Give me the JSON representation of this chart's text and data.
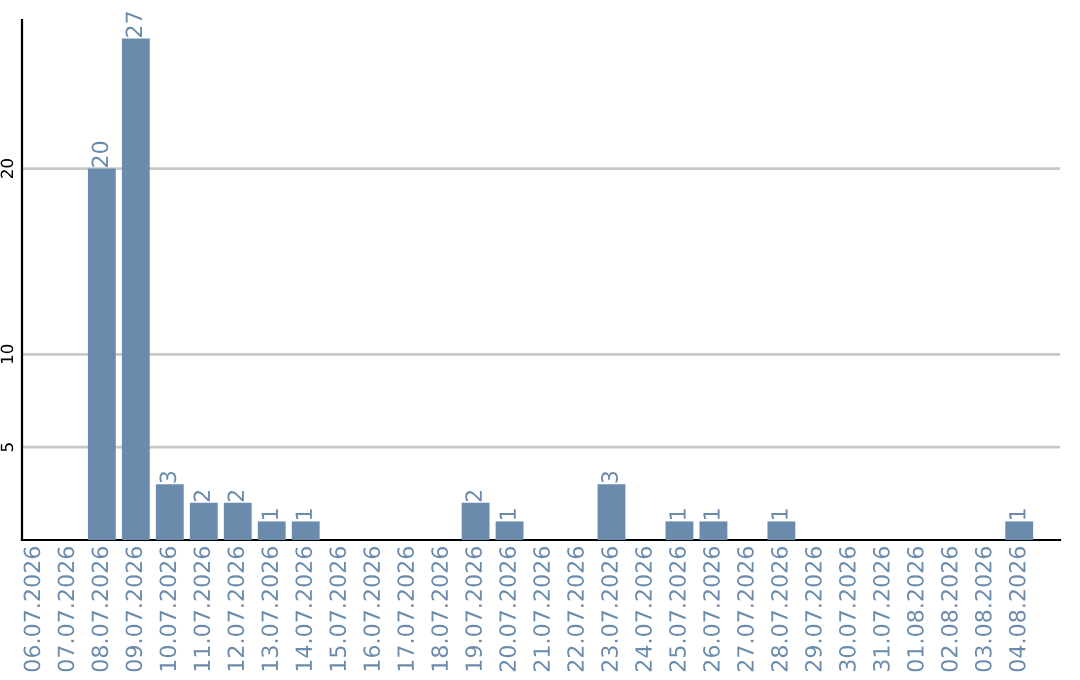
{
  "chart_data": {
    "type": "bar",
    "categories": [
      "06.07.2026",
      "07.07.2026",
      "08.07.2026",
      "09.07.2026",
      "10.07.2026",
      "11.07.2026",
      "12.07.2026",
      "13.07.2026",
      "14.07.2026",
      "15.07.2026",
      "16.07.2026",
      "17.07.2026",
      "18.07.2026",
      "19.07.2026",
      "20.07.2026",
      "21.07.2026",
      "22.07.2026",
      "23.07.2026",
      "24.07.2026",
      "25.07.2026",
      "26.07.2026",
      "27.07.2026",
      "28.07.2026",
      "29.07.2026",
      "30.07.2026",
      "31.07.2026",
      "01.08.2026",
      "02.08.2026",
      "03.08.2026",
      "04.08.2026"
    ],
    "values": [
      0,
      0,
      20,
      27,
      3,
      2,
      2,
      1,
      1,
      0,
      0,
      0,
      0,
      2,
      1,
      0,
      0,
      3,
      0,
      1,
      1,
      0,
      1,
      0,
      0,
      0,
      0,
      0,
      0,
      1
    ],
    "value_labels": [
      null,
      null,
      "20",
      "27",
      "3",
      "2",
      "2",
      "1",
      "1",
      null,
      null,
      null,
      null,
      "2",
      "1",
      null,
      null,
      "3",
      null,
      "1",
      "1",
      null,
      "1",
      null,
      null,
      null,
      null,
      null,
      null,
      "1"
    ],
    "color": "#6a8bab",
    "ylim": [
      0,
      28
    ],
    "yticks": [
      5,
      10,
      20
    ],
    "grid": "y"
  }
}
